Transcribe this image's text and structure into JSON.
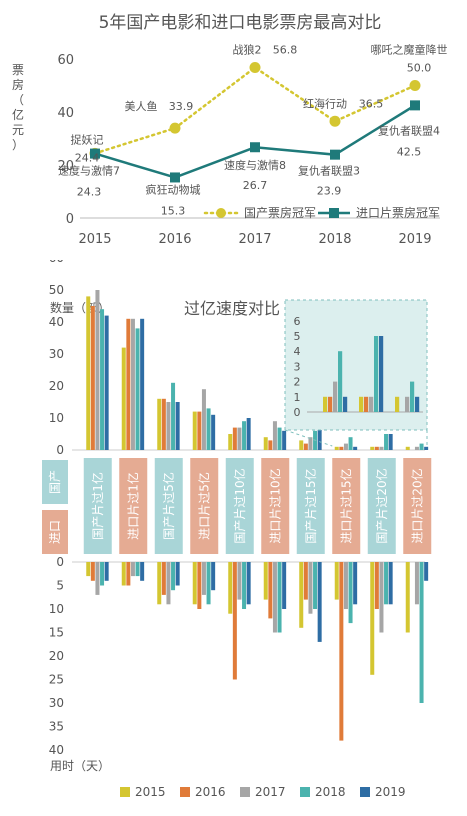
{
  "chart_data": [
    {
      "type": "line",
      "title": "5年国产电影和进口电影票房最高对比",
      "ylabel": "票房（亿元）",
      "ylabel_chars": [
        "票",
        "房",
        "（",
        "亿",
        "元",
        "）"
      ],
      "ylim": [
        0,
        60
      ],
      "yticks": [
        "0",
        "20",
        "40",
        "60"
      ],
      "x": [
        "2015",
        "2016",
        "2017",
        "2018",
        "2019"
      ],
      "legend_position": "bottom-right",
      "series": [
        {
          "name": "国产票房冠军",
          "color": "#d4c631",
          "style": "dotted",
          "marker": "circle",
          "values": [
            24.4,
            33.9,
            56.8,
            36.5,
            50.0
          ],
          "films": [
            "捉妖记",
            "美人鱼",
            "战狼2",
            "红海行动",
            "哪吒之魔童降世"
          ],
          "value_labels": [
            "24.4",
            "33.9",
            "56.8",
            "36.5",
            "50.0"
          ]
        },
        {
          "name": "进口片票房冠军",
          "color": "#1f7a7a",
          "style": "solid",
          "marker": "square",
          "values": [
            24.3,
            15.3,
            26.7,
            23.9,
            42.5
          ],
          "films": [
            "速度与激情7",
            "疯狂动物城",
            "速度与激情8",
            "复仇者联盟3",
            "复仇者联盟4"
          ],
          "value_labels": [
            "24.3",
            "15.3",
            "26.7",
            "23.9",
            "42.5"
          ]
        }
      ]
    },
    {
      "type": "bar",
      "title": "过亿速度对比",
      "upper_ylabel": "数量（部）",
      "lower_ylabel": "用时（天）",
      "upper_ylim": [
        0,
        60
      ],
      "upper_yticks": [
        "0",
        "10",
        "20",
        "30",
        "40",
        "50",
        "60"
      ],
      "lower_ylim": [
        0,
        40
      ],
      "lower_yticks": [
        "0",
        "5",
        "10",
        "15",
        "20",
        "25",
        "30",
        "35",
        "40"
      ],
      "categories": [
        "国产片过1亿",
        "进口片过1亿",
        "国产片过5亿",
        "进口片过5亿",
        "国产片过10亿",
        "进口片过10亿",
        "国产片过15亿",
        "进口片过15亿",
        "国产片过20亿",
        "进口片过20亿"
      ],
      "category_colors": {
        "国产": "#a9d5d7",
        "进口": "#e5ab93"
      },
      "row_labels": {
        "domestic": "国产",
        "imported": "进口"
      },
      "legend_position": "bottom",
      "series": [
        {
          "name": "2015",
          "color": "#d4c631",
          "counts": [
            48,
            32,
            16,
            12,
            5,
            4,
            3,
            1,
            1,
            1
          ],
          "days": [
            3,
            5,
            9,
            9,
            11,
            8,
            14,
            8,
            24,
            15
          ]
        },
        {
          "name": "2016",
          "color": "#e07b39",
          "counts": [
            45,
            41,
            16,
            12,
            7,
            3,
            2,
            1,
            1,
            0
          ],
          "days": [
            4,
            5,
            7,
            10,
            25,
            12,
            8,
            38,
            10,
            0
          ]
        },
        {
          "name": "2017",
          "color": "#a6a6a6",
          "counts": [
            50,
            41,
            15,
            19,
            7,
            9,
            4,
            2,
            1,
            1
          ],
          "days": [
            7,
            3,
            9,
            7,
            8,
            15,
            11,
            10,
            15,
            9
          ]
        },
        {
          "name": "2018",
          "color": "#4bb3ae",
          "counts": [
            44,
            38,
            21,
            13,
            9,
            7,
            6,
            4,
            5,
            2
          ],
          "days": [
            5,
            3,
            6,
            9,
            10,
            15,
            10,
            13,
            9,
            30
          ]
        },
        {
          "name": "2019",
          "color": "#2e6da4",
          "counts": [
            42,
            41,
            15,
            11,
            10,
            6,
            7,
            1,
            5,
            1
          ],
          "days": [
            4,
            4,
            5,
            6,
            9,
            10,
            17,
            9,
            9,
            4
          ]
        }
      ],
      "inset": {
        "yticks": [
          "0",
          "1",
          "2",
          "3",
          "4",
          "5",
          "6"
        ],
        "ylim": [
          0,
          6
        ],
        "categories_shown": [
          "进口片过15亿",
          "国产片过20亿",
          "进口片过20亿"
        ]
      }
    }
  ]
}
